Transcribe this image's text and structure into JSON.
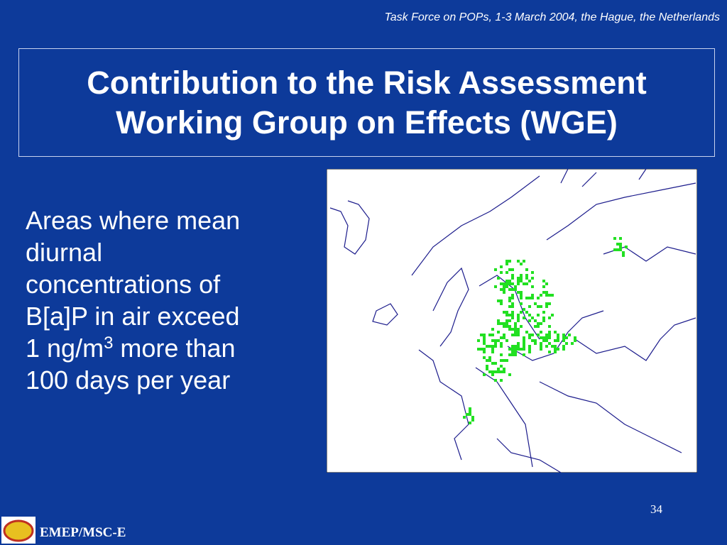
{
  "header": {
    "event": "Task Force on POPs, 1-3 March 2004, the Hague, the Netherlands"
  },
  "title": {
    "lines": [
      "Contribution to the Risk Assessment",
      "Working Group on Effects (WGE)"
    ]
  },
  "body": {
    "lines": [
      "Areas where mean",
      "diurnal",
      "concentrations of",
      "B[a]P in air exceed"
    ],
    "unit_line": {
      "text": "1 ng/m",
      "superscript": "3",
      "rest": "more than"
    },
    "last_line": "100 days per year"
  },
  "footer": {
    "organization": "EMEP/MSC-E",
    "page_number": "34"
  }
}
